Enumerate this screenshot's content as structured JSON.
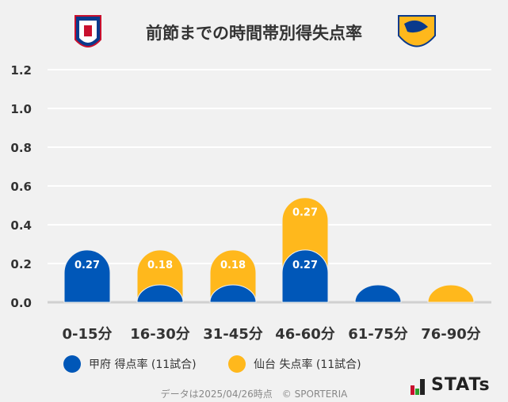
{
  "chart_data": {
    "type": "bar",
    "stacked": true,
    "title": "前節までの時間帯別得失点率",
    "categories": [
      "0-15分",
      "16-30分",
      "31-45分",
      "46-60分",
      "61-75分",
      "76-90分"
    ],
    "series": [
      {
        "name": "甲府 得点率 (11試合)",
        "color": "#0057b8",
        "values": [
          0.27,
          0,
          0,
          0.27,
          0,
          0
        ],
        "labels": [
          "0.27",
          "",
          "",
          "0.27",
          "",
          ""
        ]
      },
      {
        "name": "仙台 失点率 (11試合)",
        "color": "#ffb81c",
        "values": [
          0,
          0.18,
          0.18,
          0.27,
          0,
          0
        ],
        "labels": [
          "",
          "0.18",
          "0.18",
          "0.27",
          "",
          ""
        ]
      }
    ],
    "ylim": [
      0,
      1.2
    ],
    "yticks": [
      "0.0",
      "0.2",
      "0.4",
      "0.6",
      "0.8",
      "1.0",
      "1.2"
    ],
    "grid": true,
    "legend": "bottom"
  },
  "footer": {
    "note": "データは2025/04/26時点　© SPORTERIA",
    "brand": "STATs"
  }
}
